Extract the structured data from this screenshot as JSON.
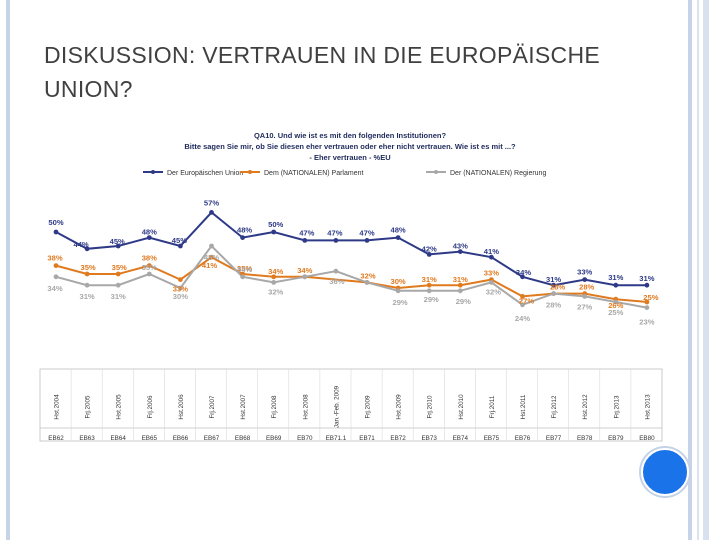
{
  "slide": {
    "title_line1": "DISKUSSION: VERTRAUEN IN DIE EUROPÄISCHE",
    "title_line2": "UNION?"
  },
  "chart_data": {
    "type": "line",
    "title": "QA10. Und wie ist es mit den folgenden Institutionen?",
    "subtitle": "Bitte sagen Sie mir, ob Sie diesen eher vertrauen oder eher nicht vertrauen. Wie ist es mit ...?",
    "subtitle2": "- Eher vertrauen - %EU",
    "legend_position": "top",
    "categories": [
      "Hst.2004",
      "Frj.2005",
      "Hst.2005",
      "Frj.2006",
      "Hst.2006",
      "Frj.2007",
      "Hst.2007",
      "Frj.2008",
      "Hst.2008",
      "Jan.-Feb. 2009",
      "Frj.2009",
      "Hst.2009",
      "Frj.2010",
      "Hst.2010",
      "Frj.2011",
      "Hst.2011",
      "Frj.2012",
      "Hst.2012",
      "Frj.2013",
      "Hst.2013"
    ],
    "surveys": [
      "EB62",
      "EB63",
      "EB64",
      "EB65",
      "EB66",
      "EB67",
      "EB68",
      "EB69",
      "EB70",
      "EB71.1",
      "EB71",
      "EB72",
      "EB73",
      "EB74",
      "EB75",
      "EB76",
      "EB77",
      "EB78",
      "EB79",
      "EB80"
    ],
    "series": [
      {
        "name": "Der Europäischen Union",
        "color": "#2e3a87",
        "values": [
          50,
          44,
          45,
          48,
          45,
          57,
          48,
          50,
          47,
          47,
          47,
          48,
          42,
          43,
          41,
          34,
          31,
          33,
          31,
          31
        ],
        "labels": [
          "50%",
          "44%",
          "45%",
          "48%",
          "45%",
          "57%",
          "48%",
          "50%",
          "47%",
          "47%",
          "47%",
          "48%",
          "42%",
          "43%",
          "41%",
          "34%",
          "31%",
          "33%",
          "31%",
          "31%"
        ]
      },
      {
        "name": "Dem (NATIONALEN) Parlament",
        "color": "#e07a1f",
        "values": [
          38,
          35,
          35,
          38,
          33,
          41,
          35,
          34,
          34,
          null,
          32,
          30,
          31,
          31,
          33,
          27,
          28,
          28,
          26,
          25
        ],
        "labels": [
          "38%",
          "35%",
          "35%",
          "38%",
          "33%",
          "41%",
          "35%",
          "34%",
          "34%",
          "",
          "32%",
          "30%",
          "31%",
          "31%",
          "33%",
          "27%",
          "28%",
          "28%",
          "26%",
          "25%"
        ]
      },
      {
        "name": "Der (NATIONALEN) Regierung",
        "color": "#a8a8a8",
        "values": [
          34,
          31,
          31,
          35,
          30,
          45,
          34,
          32,
          34,
          36,
          32,
          29,
          29,
          29,
          32,
          24,
          28,
          27,
          25,
          23
        ],
        "labels": [
          "34%",
          "31%",
          "31%",
          "35%",
          "30%",
          "45%",
          "34%",
          "32%",
          "",
          "36%",
          "",
          "29%",
          "29%",
          "29%",
          "32%",
          "24%",
          "28%",
          "27%",
          "25%",
          "23%"
        ]
      }
    ],
    "xlabel": "",
    "ylabel": "",
    "ylim": [
      15,
      65
    ],
    "grid": false
  }
}
